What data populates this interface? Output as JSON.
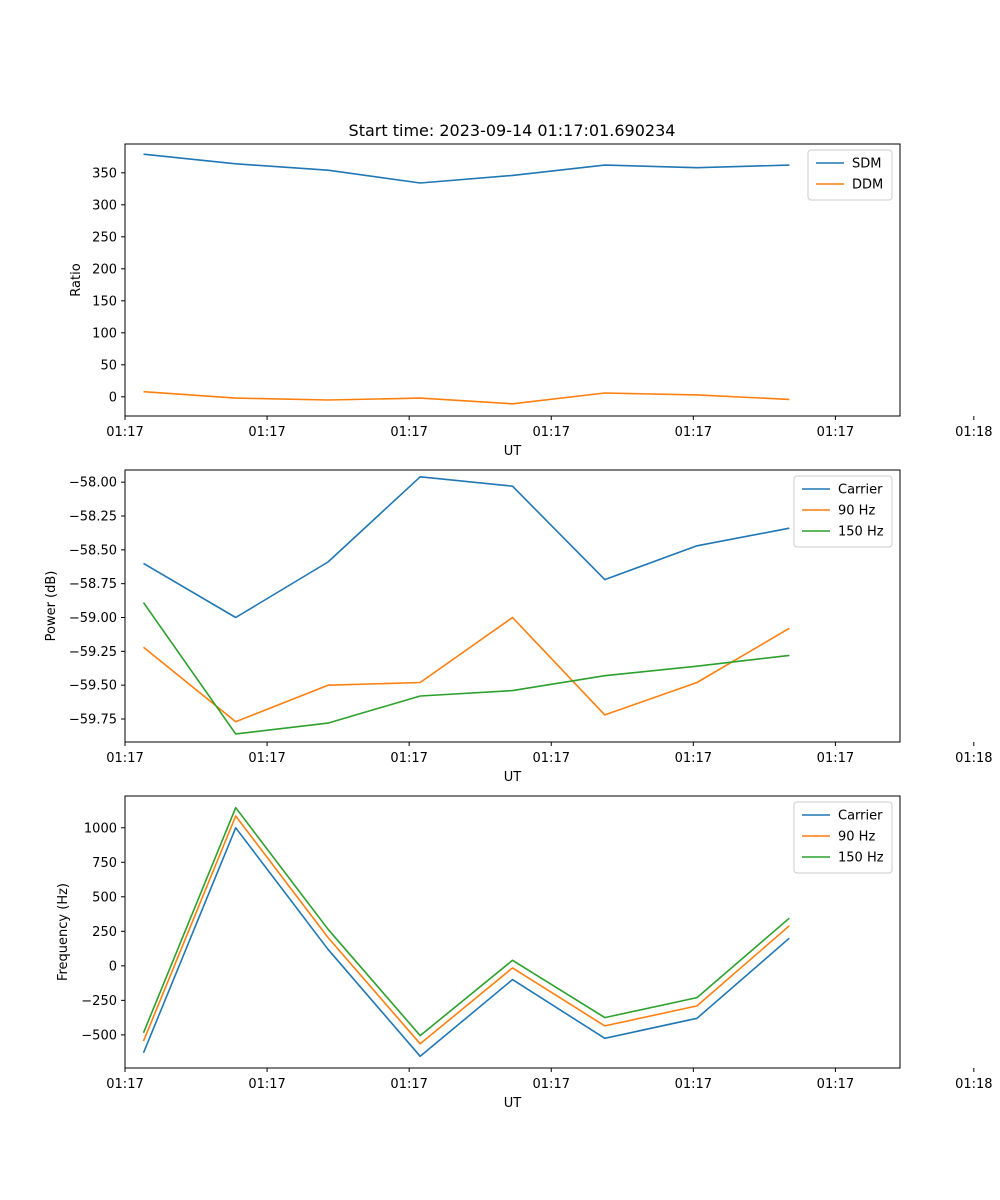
{
  "figure_title": "Start time: 2023-09-14 01:17:01.690234",
  "chart_data": [
    {
      "type": "line",
      "title": "Start time: 2023-09-14 01:17:01.690234",
      "xlabel": "UT",
      "ylabel": "Ratio",
      "x": [
        1,
        2,
        3,
        4,
        5,
        6,
        7,
        8
      ],
      "xlim": [
        0.8,
        9.2
      ],
      "x_ticks": [
        0.8,
        2.34,
        3.88,
        5.42,
        6.96,
        8.5,
        10.0
      ],
      "x_tick_labels": [
        "01:17",
        "01:17",
        "01:17",
        "01:17",
        "01:17",
        "01:17",
        "01:18"
      ],
      "ylim": [
        -30,
        395
      ],
      "y_ticks": [
        0,
        50,
        100,
        150,
        200,
        250,
        300,
        350
      ],
      "y_tick_labels": [
        "0",
        "50",
        "100",
        "150",
        "200",
        "250",
        "300",
        "350"
      ],
      "legend_position": "top-right",
      "series": [
        {
          "name": "SDM",
          "color": "#1f77b4",
          "values": [
            379,
            364,
            354,
            334,
            346,
            362,
            358,
            362
          ]
        },
        {
          "name": "DDM",
          "color": "#ff7f0e",
          "values": [
            8,
            -2,
            -5,
            -2,
            -11,
            6,
            3,
            -4
          ]
        }
      ]
    },
    {
      "type": "line",
      "title": "",
      "xlabel": "UT",
      "ylabel": "Power (dB)",
      "x": [
        1,
        2,
        3,
        4,
        5,
        6,
        7,
        8
      ],
      "xlim": [
        0.8,
        9.2
      ],
      "x_ticks": [
        0.8,
        2.34,
        3.88,
        5.42,
        6.96,
        8.5,
        10.0
      ],
      "x_tick_labels": [
        "01:17",
        "01:17",
        "01:17",
        "01:17",
        "01:17",
        "01:17",
        "01:18"
      ],
      "ylim": [
        -59.92,
        -57.91
      ],
      "y_ticks": [
        -58.0,
        -58.25,
        -58.5,
        -58.75,
        -59.0,
        -59.25,
        -59.5,
        -59.75
      ],
      "y_tick_labels": [
        "−58.00",
        "−58.25",
        "−58.50",
        "−58.75",
        "−59.00",
        "−59.25",
        "−59.50",
        "−59.75"
      ],
      "legend_position": "top-right",
      "series": [
        {
          "name": "Carrier",
          "color": "#1f77b4",
          "values": [
            -58.6,
            -59.0,
            -58.59,
            -57.96,
            -58.03,
            -58.72,
            -58.47,
            -58.34
          ]
        },
        {
          "name": "90 Hz",
          "color": "#ff7f0e",
          "values": [
            -59.22,
            -59.77,
            -59.5,
            -59.48,
            -59.0,
            -59.72,
            -59.48,
            -59.08
          ]
        },
        {
          "name": "150 Hz",
          "color": "#2ca02c",
          "values": [
            -58.89,
            -59.86,
            -59.78,
            -59.58,
            -59.54,
            -59.43,
            -59.36,
            -59.28
          ]
        }
      ]
    },
    {
      "type": "line",
      "title": "",
      "xlabel": "UT",
      "ylabel": "Frequency (Hz)",
      "x": [
        1,
        2,
        3,
        4,
        5,
        6,
        7,
        8
      ],
      "xlim": [
        0.8,
        9.2
      ],
      "x_ticks": [
        0.8,
        2.34,
        3.88,
        5.42,
        6.96,
        8.5,
        10.0
      ],
      "x_tick_labels": [
        "01:17",
        "01:17",
        "01:17",
        "01:17",
        "01:17",
        "01:17",
        "01:18"
      ],
      "ylim": [
        -740,
        1230
      ],
      "y_ticks": [
        -500,
        -250,
        0,
        250,
        500,
        750,
        1000
      ],
      "y_tick_labels": [
        "−500",
        "−250",
        "0",
        "250",
        "500",
        "750",
        "1000"
      ],
      "legend_position": "top-right",
      "series": [
        {
          "name": "Carrier",
          "color": "#1f77b4",
          "values": [
            -630,
            1000,
            120,
            -655,
            -100,
            -525,
            -380,
            200
          ]
        },
        {
          "name": "90 Hz",
          "color": "#ff7f0e",
          "values": [
            -545,
            1085,
            205,
            -565,
            -15,
            -435,
            -290,
            290
          ]
        },
        {
          "name": "150 Hz",
          "color": "#2ca02c",
          "values": [
            -485,
            1145,
            265,
            -505,
            40,
            -375,
            -230,
            345
          ]
        }
      ]
    }
  ]
}
